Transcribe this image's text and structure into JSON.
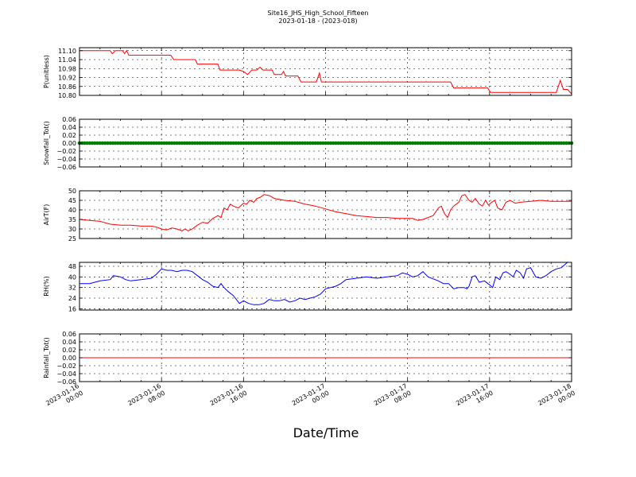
{
  "figure": {
    "title": "Site16_JHS_High_School_Fifteen",
    "subtitle": "2023-01-18 - (2023-018)",
    "xlabel": "Date/Time",
    "x_ticks": [
      {
        "t": 0,
        "l1": "2023-01-16",
        "l2": "00:00"
      },
      {
        "t": 8,
        "l1": "2023-01-16",
        "l2": "08:00"
      },
      {
        "t": 16,
        "l1": "2023-01-16",
        "l2": "16:00"
      },
      {
        "t": 24,
        "l1": "2023-01-17",
        "l2": "00:00"
      },
      {
        "t": 32,
        "l1": "2023-01-17",
        "l2": "08:00"
      },
      {
        "t": 40,
        "l1": "2023-01-17",
        "l2": "16:00"
      },
      {
        "t": 48,
        "l1": "2023-01-18",
        "l2": "00:00"
      }
    ],
    "x_range": [
      "2023-01-16 00:00",
      "2023-01-18 00:00"
    ],
    "grid": true
  },
  "chart_data": [
    {
      "type": "line",
      "ylabel": "P(unitless)",
      "ylim": [
        10.8,
        11.12
      ],
      "yticks": [
        "10.80",
        "10.86",
        "10.92",
        "10.98",
        "11.04",
        "11.10"
      ],
      "color": "#ff0000",
      "series": [
        {
          "values": [
            [
              0,
              11.1
            ],
            [
              3,
              11.1
            ],
            [
              3.2,
              11.08
            ],
            [
              3.5,
              11.1
            ],
            [
              4.2,
              11.1
            ],
            [
              4.4,
              11.08
            ],
            [
              4.6,
              11.1
            ],
            [
              4.8,
              11.07
            ],
            [
              8.9,
              11.07
            ],
            [
              9.2,
              11.04
            ],
            [
              11.3,
              11.04
            ],
            [
              11.5,
              11.01
            ],
            [
              13.5,
              11.01
            ],
            [
              13.7,
              10.97
            ],
            [
              15.6,
              10.97
            ],
            [
              16.0,
              10.96
            ],
            [
              16.4,
              10.94
            ],
            [
              16.8,
              10.97
            ],
            [
              17.3,
              10.97
            ],
            [
              17.6,
              10.99
            ],
            [
              17.9,
              10.97
            ],
            [
              18.8,
              10.97
            ],
            [
              19.0,
              10.94
            ],
            [
              19.7,
              10.94
            ],
            [
              19.9,
              10.96
            ],
            [
              20.1,
              10.93
            ],
            [
              21.3,
              10.93
            ],
            [
              21.6,
              10.89
            ],
            [
              23.1,
              10.89
            ],
            [
              23.4,
              10.95
            ],
            [
              23.6,
              10.89
            ],
            [
              36.2,
              10.89
            ],
            [
              36.5,
              10.85
            ],
            [
              39.8,
              10.85
            ],
            [
              40.1,
              10.82
            ],
            [
              46.5,
              10.82
            ],
            [
              46.9,
              10.9
            ],
            [
              47.2,
              10.84
            ],
            [
              47.6,
              10.84
            ],
            [
              48,
              10.81
            ]
          ]
        }
      ]
    },
    {
      "type": "scatter",
      "ylabel": "Snowfall_Tot()",
      "ylim": [
        -0.06,
        0.06
      ],
      "yticks": [
        "−0.06",
        "−0.04",
        "−0.02",
        "0.00",
        "0.02",
        "0.04",
        "0.06"
      ],
      "color": "#007f00",
      "series": [
        {
          "values": [
            [
              0,
              0
            ],
            [
              48,
              0
            ]
          ],
          "step_hours": 0.25
        }
      ]
    },
    {
      "type": "line",
      "ylabel": "AirT(F)",
      "ylim": [
        25,
        50
      ],
      "yticks": [
        "25",
        "30",
        "35",
        "40",
        "45",
        "50"
      ],
      "color": "#ff0000",
      "series": [
        {
          "values": [
            [
              0,
              35
            ],
            [
              1,
              34.5
            ],
            [
              2,
              34
            ],
            [
              3,
              32.5
            ],
            [
              4,
              32
            ],
            [
              5,
              32
            ],
            [
              6,
              31.5
            ],
            [
              7,
              31.5
            ],
            [
              7.5,
              31
            ],
            [
              8,
              30
            ],
            [
              8.5,
              29.5
            ],
            [
              9,
              30.5
            ],
            [
              9.5,
              30
            ],
            [
              10,
              29
            ],
            [
              10.3,
              30
            ],
            [
              10.6,
              29
            ],
            [
              11,
              30
            ],
            [
              11.5,
              32
            ],
            [
              12,
              33.5
            ],
            [
              12.5,
              33
            ],
            [
              13,
              35.5
            ],
            [
              13.5,
              37
            ],
            [
              13.8,
              36
            ],
            [
              14.1,
              41
            ],
            [
              14.4,
              40
            ],
            [
              14.7,
              43
            ],
            [
              15,
              42
            ],
            [
              15.5,
              41
            ],
            [
              16,
              43.5
            ],
            [
              16.3,
              43
            ],
            [
              16.6,
              45
            ],
            [
              17,
              44
            ],
            [
              17.3,
              46
            ],
            [
              17.6,
              46.5
            ],
            [
              18,
              48
            ],
            [
              18.5,
              47.5
            ],
            [
              19,
              46
            ],
            [
              20,
              45
            ],
            [
              21,
              44.5
            ],
            [
              22,
              43
            ],
            [
              23,
              42
            ],
            [
              24,
              40.5
            ],
            [
              25,
              39
            ],
            [
              26,
              38
            ],
            [
              27,
              37
            ],
            [
              28,
              36.5
            ],
            [
              29,
              36
            ],
            [
              30,
              36
            ],
            [
              31,
              35.5
            ],
            [
              32,
              35.5
            ],
            [
              32.5,
              35.5
            ],
            [
              33,
              34.5
            ],
            [
              33.5,
              35
            ],
            [
              34,
              36
            ],
            [
              34.5,
              37
            ],
            [
              35,
              41
            ],
            [
              35.3,
              42
            ],
            [
              35.6,
              38
            ],
            [
              35.9,
              36
            ],
            [
              36.2,
              40
            ],
            [
              36.5,
              42
            ],
            [
              37,
              44
            ],
            [
              37.3,
              47.5
            ],
            [
              37.6,
              48
            ],
            [
              38,
              45
            ],
            [
              38.3,
              44
            ],
            [
              38.6,
              46
            ],
            [
              39,
              43
            ],
            [
              39.3,
              42
            ],
            [
              39.6,
              45
            ],
            [
              39.9,
              42.5
            ],
            [
              40.2,
              44
            ],
            [
              40.5,
              45
            ],
            [
              40.8,
              41
            ],
            [
              41.2,
              40
            ],
            [
              41.6,
              44
            ],
            [
              42,
              45
            ],
            [
              42.5,
              43.5
            ],
            [
              43,
              44
            ],
            [
              44,
              44.5
            ],
            [
              45,
              45
            ],
            [
              46,
              44.5
            ],
            [
              47,
              44.5
            ],
            [
              48,
              44.5
            ]
          ]
        }
      ]
    },
    {
      "type": "line",
      "ylabel": "RH(%)",
      "ylim": [
        15,
        51
      ],
      "yticks": [
        "16",
        "24",
        "32",
        "40",
        "48"
      ],
      "color": "#0000ff",
      "series": [
        {
          "values": [
            [
              0,
              35
            ],
            [
              1,
              35
            ],
            [
              2,
              37
            ],
            [
              3,
              38
            ],
            [
              3.3,
              41
            ],
            [
              4,
              40
            ],
            [
              4.5,
              38
            ],
            [
              5,
              37
            ],
            [
              6,
              38
            ],
            [
              7,
              39
            ],
            [
              7.5,
              42
            ],
            [
              8,
              46
            ],
            [
              8.5,
              45
            ],
            [
              9,
              45
            ],
            [
              9.5,
              44
            ],
            [
              10,
              45
            ],
            [
              10.5,
              45
            ],
            [
              11,
              44
            ],
            [
              11.5,
              41
            ],
            [
              12,
              38
            ],
            [
              12.5,
              36
            ],
            [
              13,
              33
            ],
            [
              13.5,
              32
            ],
            [
              13.8,
              35
            ],
            [
              14.1,
              32
            ],
            [
              14.5,
              29
            ],
            [
              15,
              26
            ],
            [
              15.3,
              23
            ],
            [
              15.6,
              20
            ],
            [
              16,
              22
            ],
            [
              16.5,
              20
            ],
            [
              17,
              19
            ],
            [
              17.5,
              19
            ],
            [
              18,
              20
            ],
            [
              18.5,
              23
            ],
            [
              19,
              22
            ],
            [
              19.5,
              22
            ],
            [
              20,
              23
            ],
            [
              20.5,
              21
            ],
            [
              21,
              22
            ],
            [
              21.5,
              24
            ],
            [
              22,
              23
            ],
            [
              22.5,
              24
            ],
            [
              23,
              25
            ],
            [
              23.5,
              27
            ],
            [
              24,
              31
            ],
            [
              24.5,
              32
            ],
            [
              25,
              33
            ],
            [
              25.5,
              35
            ],
            [
              26,
              38
            ],
            [
              27,
              39
            ],
            [
              28,
              40
            ],
            [
              29,
              39
            ],
            [
              30,
              40
            ],
            [
              31,
              41
            ],
            [
              31.5,
              43
            ],
            [
              32,
              42
            ],
            [
              32.5,
              40
            ],
            [
              33,
              41
            ],
            [
              33.5,
              44
            ],
            [
              34,
              40
            ],
            [
              35,
              37
            ],
            [
              35.5,
              35
            ],
            [
              36,
              35
            ],
            [
              36.5,
              31
            ],
            [
              37,
              32
            ],
            [
              37.5,
              32
            ],
            [
              37.8,
              31
            ],
            [
              38,
              33
            ],
            [
              38.3,
              40
            ],
            [
              38.6,
              41
            ],
            [
              39,
              36
            ],
            [
              39.5,
              37
            ],
            [
              40,
              34
            ],
            [
              40.3,
              32
            ],
            [
              40.6,
              40
            ],
            [
              41,
              38
            ],
            [
              41.3,
              43
            ],
            [
              41.6,
              44
            ],
            [
              42,
              42
            ],
            [
              42.3,
              40
            ],
            [
              42.6,
              45
            ],
            [
              43,
              43
            ],
            [
              43.3,
              39
            ],
            [
              43.6,
              46
            ],
            [
              44,
              47
            ],
            [
              44.5,
              40
            ],
            [
              45,
              39
            ],
            [
              45.5,
              41
            ],
            [
              46,
              44
            ],
            [
              46.5,
              46
            ],
            [
              47,
              47
            ],
            [
              47.3,
              49
            ],
            [
              47.6,
              51
            ],
            [
              48,
              51
            ]
          ]
        }
      ]
    },
    {
      "type": "line",
      "ylabel": "Rainfall_Tot()",
      "ylim": [
        -0.06,
        0.06
      ],
      "yticks": [
        "−0.06",
        "−0.04",
        "−0.02",
        "0.00",
        "0.02",
        "0.04",
        "0.06"
      ],
      "color": "#ff0000",
      "series": [
        {
          "values": [
            [
              0,
              0
            ],
            [
              48,
              0
            ]
          ]
        }
      ]
    }
  ]
}
